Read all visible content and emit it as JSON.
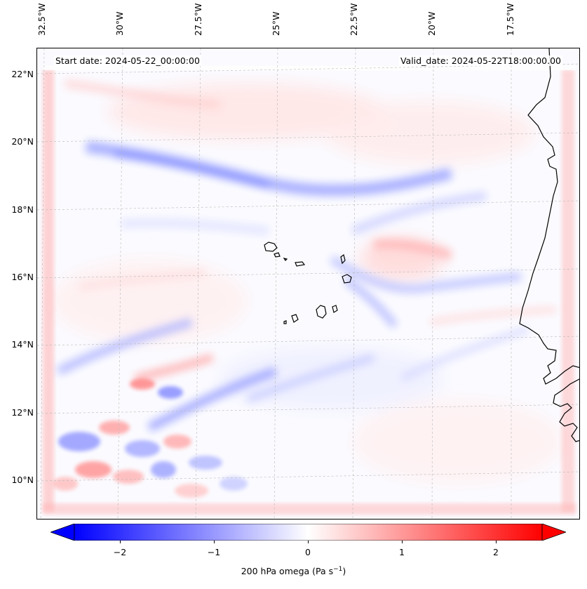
{
  "map": {
    "start_date": "Start date: 2024-05-22_00:00:00",
    "valid_date": "Valid_date: 2024-05-22T18:00:00.00",
    "longitude_labels": [
      "32.5°W",
      "30°W",
      "27.5°W",
      "25°W",
      "22.5°W",
      "20°W",
      "17.5°W"
    ],
    "latitude_labels": [
      "22°N",
      "20°N",
      "18°N",
      "16°N",
      "14°N",
      "12°N",
      "10°N"
    ],
    "field": "200 hPa vertical velocity (omega)",
    "colormap": "bwr",
    "gridlines": true
  },
  "colorbar": {
    "ticks": [
      "−2",
      "−1",
      "0",
      "1",
      "2"
    ],
    "tick_values": [
      -2,
      -1,
      0,
      1,
      2
    ],
    "range": [
      -2.5,
      2.5
    ],
    "extend": "both",
    "label_prefix": "200 hPa omega (Pa s",
    "label_exp": "−1",
    "label_suffix": ")",
    "min_color": "#0000ff",
    "mid_color": "#ffffff",
    "max_color": "#ff0000"
  }
}
